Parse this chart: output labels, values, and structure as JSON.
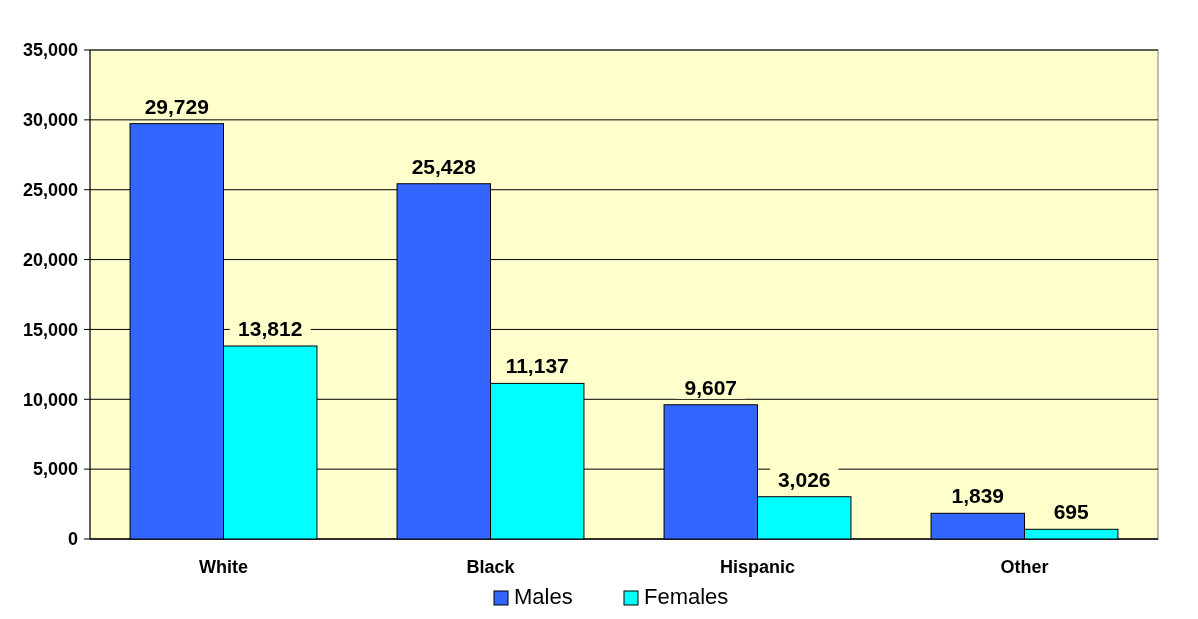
{
  "chart_data": {
    "type": "bar",
    "categories": [
      "White",
      "Black",
      "Hispanic",
      "Other"
    ],
    "series": [
      {
        "name": "Males",
        "color": "#3366ff",
        "values": [
          29729,
          25428,
          9607,
          1839
        ],
        "value_labels": [
          "29,729",
          "25,428",
          "9,607",
          "1,839"
        ]
      },
      {
        "name": "Females",
        "color": "#00ffff",
        "values": [
          13812,
          11137,
          3026,
          695
        ],
        "value_labels": [
          "13,812",
          "11,137",
          "3,026",
          "695"
        ]
      }
    ],
    "ylim": [
      0,
      35000
    ],
    "yticks": [
      0,
      {
        "value": 5000,
        "label": "5,000"
      },
      {
        "value": 10000,
        "label": "10,000"
      },
      {
        "value": 15000,
        "label": "15,000"
      },
      {
        "value": 20000,
        "label": "20,000"
      },
      {
        "value": 25000,
        "label": "25,000"
      },
      {
        "value": 30000,
        "label": "30,000"
      },
      {
        "value": 35000,
        "label": "35,000"
      }
    ],
    "grid": "y",
    "legend": "bottom"
  }
}
